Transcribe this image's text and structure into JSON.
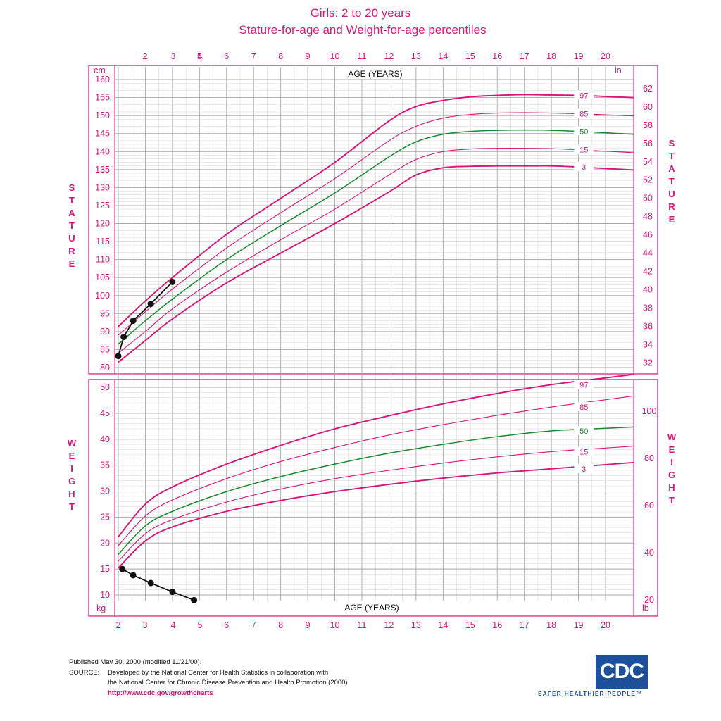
{
  "header": {
    "title": "Girls:  2 to 20 years",
    "subtitle": "Stature-for-age and Weight-for-age percentiles"
  },
  "footer": {
    "published": "Published May 30, 2000 (modified 11/21/00).",
    "source_label": "SOURCE:",
    "source_line1": "Developed by the National Center for Health Statistics in collaboration with",
    "source_line2": "the National Center for Chronic Disease Prevention and Health Promotion  (2000).",
    "url": "http://www.cdc.gov/growthcharts"
  },
  "logo": {
    "text": "CDC",
    "tagline": "SAFER·HEALTHIER·PEOPLE™"
  },
  "colors": {
    "pink": "#d6167a",
    "green": "#1a8a2e",
    "black": "#111111",
    "grid": "#bbbbbb"
  },
  "chart_data": [
    {
      "type": "line",
      "name_panel": "stature",
      "side_label": "STATURE",
      "xlabel": "AGE (YEARS)",
      "unit_left": "cm",
      "unit_right": "in",
      "xlim": [
        2,
        20
      ],
      "ylim": [
        80,
        160
      ],
      "x_ticks_top": [
        2,
        3,
        4,
        5,
        6,
        7,
        8,
        9,
        10,
        11,
        12,
        13,
        14,
        15,
        16,
        17,
        18,
        19,
        20
      ],
      "y_ticks_left": [
        80,
        85,
        90,
        95,
        100,
        105,
        110,
        115,
        120,
        125,
        130,
        135,
        140,
        145,
        150,
        155,
        160
      ],
      "y_ticks_right": [
        32,
        34,
        36,
        38,
        40,
        42,
        44,
        46,
        48,
        50,
        52,
        54,
        56,
        58,
        60,
        62
      ],
      "percentiles": [
        {
          "label": "97",
          "x": [
            2,
            3,
            4,
            6,
            8,
            10,
            12,
            13,
            14,
            15,
            16,
            17,
            18,
            19,
            20
          ],
          "y": [
            91.4,
            98.5,
            105.0,
            117.0,
            127.0,
            137.0,
            148.5,
            152.5,
            154.2,
            155.2,
            155.6,
            155.8,
            155.7,
            155.6,
            155.3
          ]
        },
        {
          "label": "85",
          "x": [
            2,
            3,
            4,
            6,
            8,
            10,
            12,
            13,
            14,
            15,
            16,
            17,
            18,
            19,
            20
          ],
          "y": [
            89.0,
            95.5,
            101.8,
            113.2,
            123.0,
            132.5,
            143.0,
            147.0,
            149.3,
            150.3,
            150.7,
            150.8,
            150.7,
            150.5,
            150.2
          ]
        },
        {
          "label": "50",
          "x": [
            2,
            3,
            4,
            6,
            8,
            10,
            12,
            13,
            14,
            15,
            16,
            17,
            18,
            19,
            20
          ],
          "y": [
            86.5,
            93.0,
            99.0,
            110.0,
            119.4,
            128.5,
            138.5,
            142.7,
            144.8,
            145.6,
            145.9,
            146.0,
            145.9,
            145.6,
            145.2
          ]
        },
        {
          "label": "15",
          "x": [
            2,
            3,
            4,
            6,
            8,
            10,
            12,
            13,
            14,
            15,
            16,
            17,
            18,
            19,
            20
          ],
          "y": [
            84.0,
            90.0,
            96.3,
            106.5,
            115.5,
            124.0,
            133.5,
            137.8,
            140.0,
            140.7,
            140.9,
            140.9,
            140.8,
            140.5,
            140.1
          ]
        },
        {
          "label": "3",
          "x": [
            2,
            3,
            4,
            6,
            8,
            10,
            12,
            13,
            14,
            15,
            16,
            17,
            18,
            19,
            20
          ],
          "y": [
            81.5,
            87.5,
            93.5,
            103.5,
            111.8,
            120.0,
            128.8,
            133.5,
            135.5,
            135.9,
            136.0,
            136.0,
            136.0,
            135.7,
            135.3
          ]
        }
      ],
      "patient_points": {
        "x": [
          2.0,
          2.2,
          2.55,
          3.2,
          4.0
        ],
        "y": [
          83.2,
          88.5,
          93.0,
          97.7,
          103.8
        ]
      }
    },
    {
      "type": "line",
      "name_panel": "weight",
      "side_label": "WEIGHT",
      "xlabel": "AGE (YEARS)",
      "unit_left": "kg",
      "unit_right": "lb",
      "xlim": [
        2,
        20
      ],
      "ylim": [
        10,
        50
      ],
      "x_ticks_bottom": [
        2,
        3,
        4,
        5,
        6,
        7,
        8,
        9,
        10,
        11,
        12,
        13,
        14,
        15,
        16,
        17,
        18,
        19,
        20
      ],
      "y_ticks_left": [
        10,
        15,
        20,
        25,
        30,
        35,
        40,
        45,
        50
      ],
      "y_ticks_right": [
        20,
        40,
        60,
        80,
        100
      ],
      "percentiles": [
        {
          "label": "97",
          "x": [
            2,
            3,
            4,
            6,
            8,
            10,
            12,
            14,
            16,
            18,
            20
          ],
          "y": [
            21.2,
            27.5,
            30.8,
            35.2,
            38.8,
            42.0,
            44.5,
            46.8,
            48.8,
            50.5,
            51.8
          ]
        },
        {
          "label": "85",
          "x": [
            2,
            3,
            4,
            6,
            8,
            10,
            12,
            14,
            16,
            18,
            20
          ],
          "y": [
            19.5,
            25.2,
            28.3,
            32.4,
            35.7,
            38.4,
            40.8,
            42.8,
            44.6,
            46.2,
            47.6
          ]
        },
        {
          "label": "50",
          "x": [
            2,
            3,
            4,
            6,
            8,
            10,
            12,
            14,
            16,
            18,
            20
          ],
          "y": [
            17.8,
            23.3,
            26.1,
            29.9,
            32.8,
            35.2,
            37.3,
            39.0,
            40.5,
            41.6,
            42.1
          ]
        },
        {
          "label": "15",
          "x": [
            2,
            3,
            4,
            6,
            8,
            10,
            12,
            14,
            16,
            18,
            20
          ],
          "y": [
            16.5,
            21.8,
            24.5,
            27.9,
            30.4,
            32.4,
            34.0,
            35.4,
            36.6,
            37.6,
            38.3
          ]
        },
        {
          "label": "3",
          "x": [
            2,
            3,
            4,
            6,
            8,
            10,
            12,
            14,
            16,
            18,
            20
          ],
          "y": [
            15.2,
            20.4,
            23.1,
            26.1,
            28.2,
            29.9,
            31.3,
            32.5,
            33.5,
            34.3,
            35.1
          ]
        }
      ],
      "patient_points": {
        "x": [
          2.15,
          2.55,
          3.2,
          4.0,
          4.8
        ],
        "y": [
          15.0,
          13.8,
          12.3,
          10.6,
          9.0
        ]
      }
    }
  ]
}
